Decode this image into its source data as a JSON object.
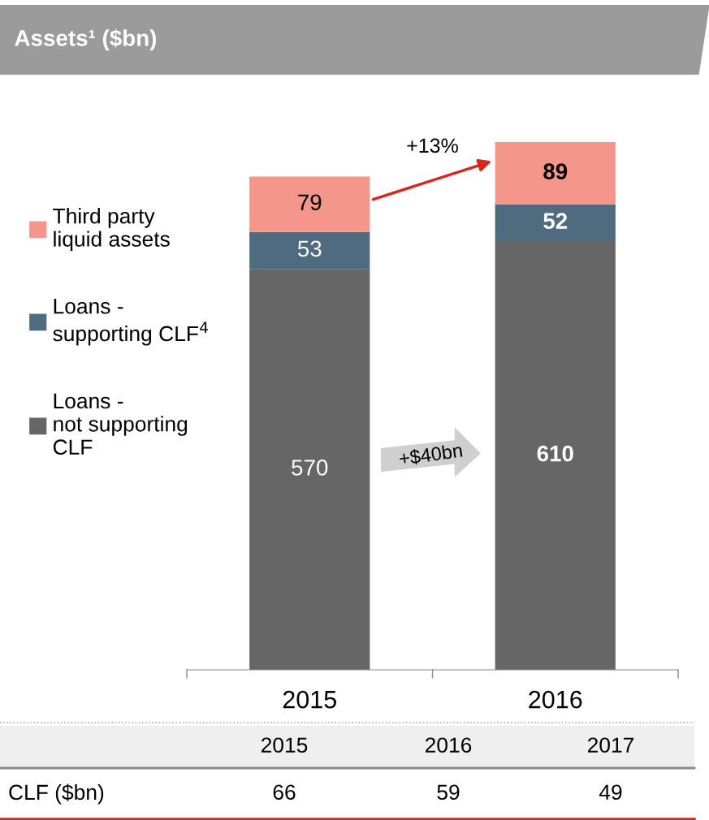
{
  "chart_data": [
    {
      "type": "bar",
      "title": "Assets¹ ($bn)",
      "categories": [
        "2015",
        "2016"
      ],
      "stacked": true,
      "data_labels": true,
      "legend": "left",
      "series": [
        {
          "name": "Loans -\nnot supporting\nCLF",
          "color": "#666666",
          "values": [
            570,
            610
          ]
        },
        {
          "name": "Loans -\nsupporting CLF$^{4}$",
          "color": "#4f6b80",
          "values": [
            53,
            52
          ]
        },
        {
          "name": "Third party\nliquid assets",
          "color": "#f4978a",
          "values": [
            79,
            89
          ]
        }
      ],
      "annotations": [
        "+13%",
        "+$40bn"
      ]
    },
    {
      "type": "other",
      "title": "CLF ($bn)",
      "categories": [
        "2015",
        "2016",
        "2017"
      ],
      "values": [
        66,
        59,
        49
      ],
      "data_labels": true
    }
  ]
}
